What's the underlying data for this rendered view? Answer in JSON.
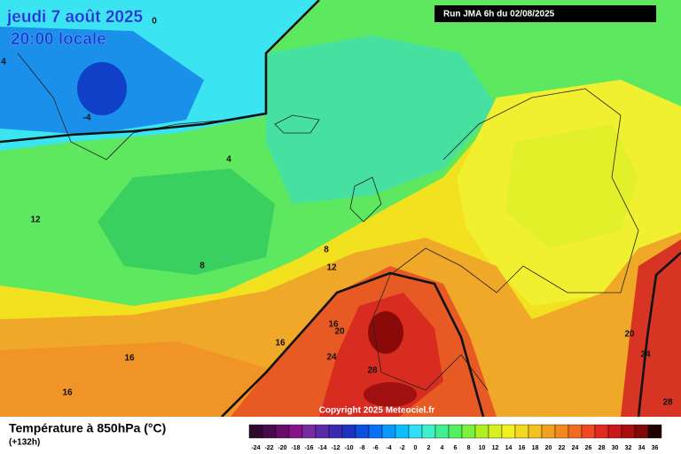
{
  "header": {
    "date": "jeudi 7 août 2025",
    "time": "20:00 locale",
    "run": "Run JMA 6h du 02/08/2025"
  },
  "map": {
    "contour_labels": [
      "0",
      "4",
      "-4",
      "4",
      "12",
      "8",
      "8",
      "12",
      "16",
      "20",
      "16",
      "16",
      "16",
      "24",
      "28",
      "20",
      "24",
      "28"
    ]
  },
  "copyright": "Copyright 2025 Meteociel.fr",
  "legend": {
    "title": "Température à 850hPa (°C)",
    "lead": "(+132h)",
    "ticks": [
      -24,
      -22,
      -20,
      -18,
      -16,
      -14,
      -12,
      -10,
      -8,
      -6,
      -4,
      -2,
      0,
      2,
      4,
      6,
      8,
      10,
      12,
      14,
      16,
      18,
      20,
      22,
      24,
      26,
      28,
      30,
      32,
      34,
      36
    ]
  }
}
